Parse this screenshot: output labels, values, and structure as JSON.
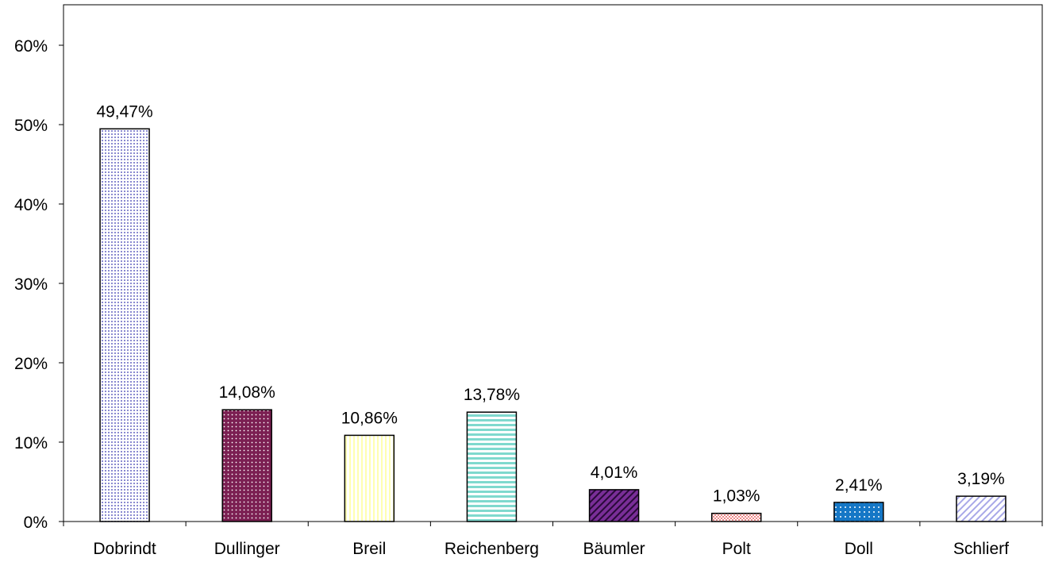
{
  "chart_data": {
    "type": "bar",
    "categories": [
      "Dobrindt",
      "Dullinger",
      "Breil",
      "Reichenberg",
      "Bäumler",
      "Polt",
      "Doll",
      "Schlierf"
    ],
    "values": [
      49.47,
      14.08,
      10.86,
      13.78,
      4.01,
      1.03,
      2.41,
      3.19
    ],
    "data_labels": [
      "49,47%",
      "14,08%",
      "10,86%",
      "13,78%",
      "4,01%",
      "1,03%",
      "2,41%",
      "3,19%"
    ],
    "bar_colors": [
      "#dcdcf4",
      "#7b1f52",
      "#ffffd0",
      "#9fe6de",
      "#7a2e98",
      "#f2a8a8",
      "#1577c6",
      "#d4d4f8"
    ],
    "y_ticks": [
      "0%",
      "10%",
      "20%",
      "30%",
      "40%",
      "50%",
      "60%"
    ],
    "ylim": [
      0,
      65
    ],
    "title": "",
    "xlabel": "",
    "ylabel": "",
    "grid": false,
    "legend": "none"
  }
}
